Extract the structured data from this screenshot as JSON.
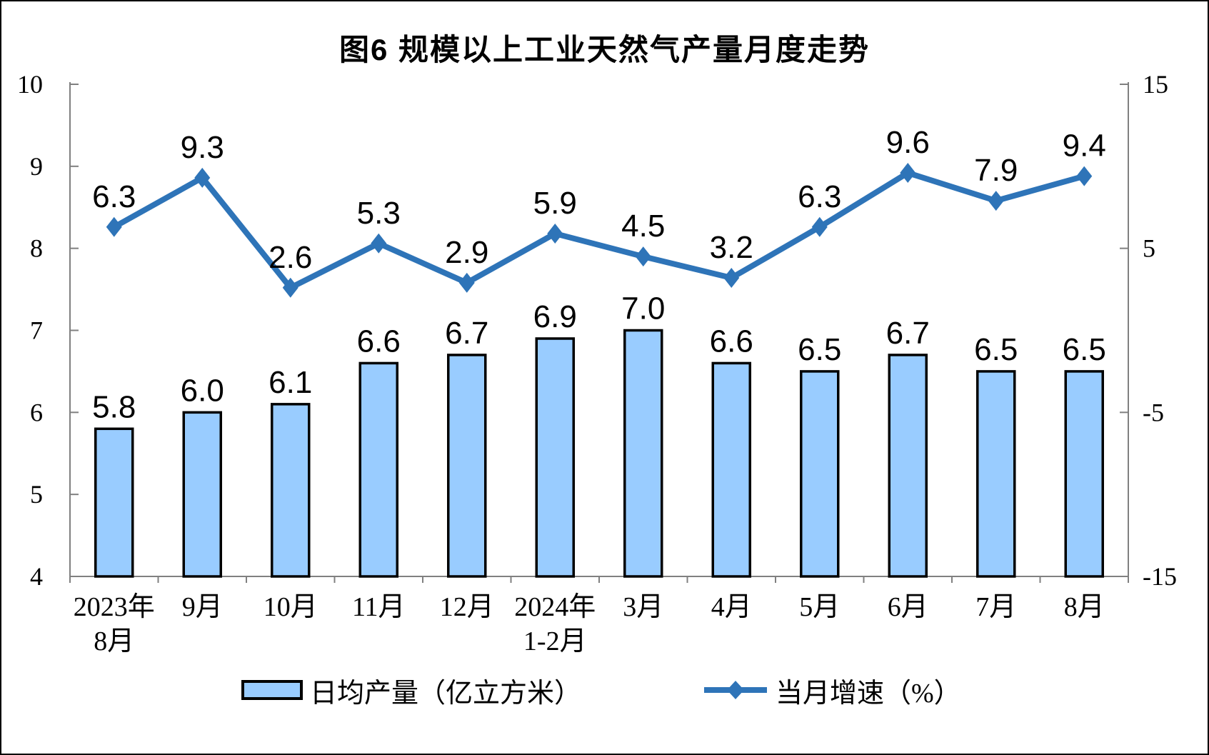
{
  "chart_data": {
    "type": "combo-bar-line",
    "title": "图6 规模以上工业天然气产量月度走势",
    "categories": [
      [
        "2023年",
        "8月"
      ],
      [
        "9月"
      ],
      [
        "10月"
      ],
      [
        "11月"
      ],
      [
        "12月"
      ],
      [
        "2024年",
        "1-2月"
      ],
      [
        "3月"
      ],
      [
        "4月"
      ],
      [
        "5月"
      ],
      [
        "6月"
      ],
      [
        "7月"
      ],
      [
        "8月"
      ]
    ],
    "series": [
      {
        "name": "日均产量（亿立方米）",
        "type": "bar",
        "axis": "left",
        "values": [
          5.8,
          6.0,
          6.1,
          6.6,
          6.7,
          6.9,
          7.0,
          6.6,
          6.5,
          6.7,
          6.5,
          6.5
        ]
      },
      {
        "name": "当月增速（%）",
        "type": "line",
        "axis": "right",
        "values": [
          6.3,
          9.3,
          2.6,
          5.3,
          2.9,
          5.9,
          4.5,
          3.2,
          6.3,
          9.6,
          7.9,
          9.4
        ]
      }
    ],
    "left_axis": {
      "min": 4,
      "max": 10,
      "ticks": [
        4,
        5,
        6,
        7,
        8,
        9,
        10
      ]
    },
    "right_axis": {
      "min": -15,
      "max": 15,
      "ticks": [
        -15,
        -5,
        5,
        15
      ]
    },
    "grid": "off",
    "legend_position": "bottom",
    "colors": {
      "bar_fill": "#99CCFF",
      "bar_border": "#000000",
      "line": "#2E74B8",
      "axis": "#808080",
      "label_text": "#000000"
    }
  }
}
